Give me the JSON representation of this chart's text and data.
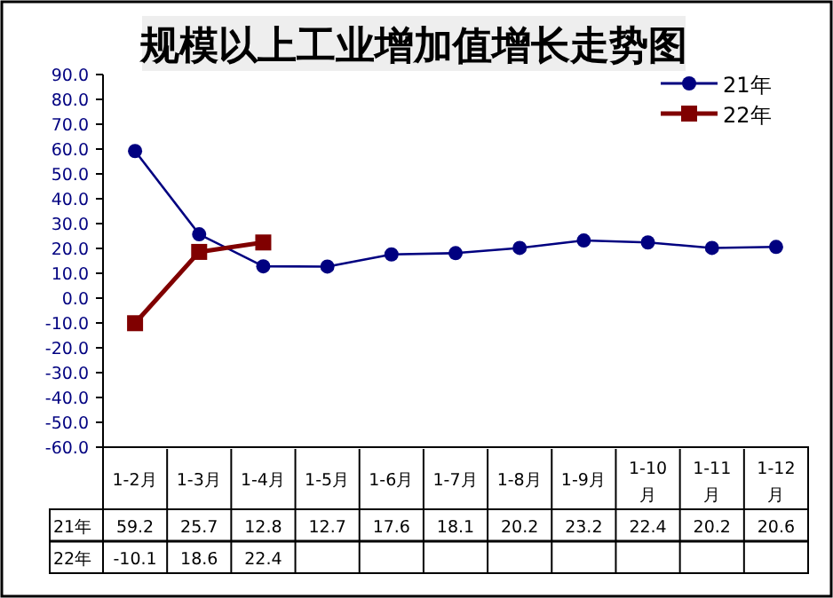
{
  "chart_data": {
    "type": "line",
    "title": "规模以上工业增加值增长走势图",
    "categories": [
      "1-2月",
      "1-3月",
      "1-4月",
      "1-5月",
      "1-6月",
      "1-7月",
      "1-8月",
      "1-9月",
      "1-10月",
      "1-11月",
      "1-12月"
    ],
    "series": [
      {
        "name": "21年",
        "color": "#000080",
        "marker": "circle",
        "values": [
          59.2,
          25.7,
          12.8,
          12.7,
          17.6,
          18.1,
          20.2,
          23.2,
          22.4,
          20.2,
          20.6
        ]
      },
      {
        "name": "22年",
        "color": "#800000",
        "marker": "square",
        "values": [
          -10.1,
          18.6,
          22.4,
          null,
          null,
          null,
          null,
          null,
          null,
          null,
          null
        ]
      }
    ],
    "ylim": [
      -60,
      90
    ],
    "yticks": [
      {
        "value": 90,
        "label": "90.0"
      },
      {
        "value": 80,
        "label": "80.0"
      },
      {
        "value": 70,
        "label": "70.0"
      },
      {
        "value": 60,
        "label": "60.0"
      },
      {
        "value": 50,
        "label": "50.0"
      },
      {
        "value": 40,
        "label": "40.0"
      },
      {
        "value": 30,
        "label": "30.0"
      },
      {
        "value": 20,
        "label": "20.0"
      },
      {
        "value": 10,
        "label": "10.0"
      },
      {
        "value": 0,
        "label": "0.0"
      },
      {
        "value": -10,
        "label": "-10.0"
      },
      {
        "value": -20,
        "label": "-20.0"
      },
      {
        "value": -30,
        "label": "-30.0"
      },
      {
        "value": -40,
        "label": "-40.0"
      },
      {
        "value": -50,
        "label": "-50.0"
      },
      {
        "value": -60,
        "label": "-60.0"
      }
    ],
    "data_labels": true,
    "legend": "top right"
  }
}
